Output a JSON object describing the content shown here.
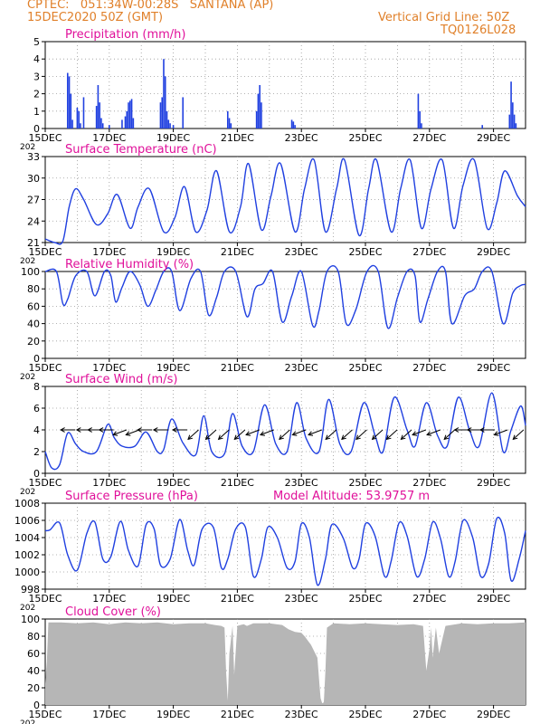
{
  "header": {
    "line1_left": "CPTEC:   051:34W-00:28S   SANTANA (AP)",
    "line2_left": "15DEC2020 50Z (GMT)",
    "line1_right": "Vertical Grid Line: 50Z",
    "line2_right": "TQ0126L028"
  },
  "colors": {
    "header": "#e0802a",
    "title": "#e0109a",
    "series": "#2040e0",
    "bars": "#2040e0",
    "cloud": "#b4b4b4",
    "grid": "#9a9a9a"
  },
  "x_axis": {
    "ticks": [
      "15DEC",
      "17DEC",
      "19DEC",
      "21DEC",
      "23DEC",
      "25DEC",
      "27DEC",
      "29DEC"
    ],
    "tick_days": [
      0,
      2,
      4,
      6,
      8,
      10,
      12,
      14
    ],
    "year_fragment": "202"
  },
  "chart_data": [
    {
      "id": "precip",
      "type": "bar",
      "title": "Precipitation  (mm/h)",
      "ylim": [
        0,
        5
      ],
      "yticks": [
        "0",
        "1",
        "2",
        "3",
        "4",
        "5"
      ],
      "x": [
        0.7,
        0.75,
        0.8,
        0.85,
        1.0,
        1.05,
        1.1,
        1.2,
        1.6,
        1.65,
        1.7,
        1.75,
        1.8,
        2.0,
        2.4,
        2.5,
        2.55,
        2.6,
        2.65,
        2.7,
        2.75,
        3.6,
        3.65,
        3.7,
        3.75,
        3.8,
        3.85,
        3.9,
        4.0,
        4.3,
        5.7,
        5.75,
        5.8,
        6.6,
        6.65,
        6.7,
        6.75,
        7.7,
        7.75,
        7.8,
        11.65,
        11.7,
        11.75,
        13.65,
        14.5,
        14.55,
        14.6,
        14.65,
        14.7
      ],
      "values": [
        3.2,
        3.0,
        2.0,
        0.5,
        1.2,
        1.0,
        0.3,
        1.8,
        1.3,
        2.5,
        1.5,
        0.6,
        0.3,
        0.2,
        0.5,
        0.7,
        1.0,
        1.5,
        1.6,
        1.7,
        0.6,
        1.5,
        1.8,
        4.0,
        3.0,
        1.0,
        0.5,
        0.3,
        0.2,
        1.8,
        1.0,
        0.6,
        0.3,
        1.0,
        2.0,
        2.5,
        1.5,
        0.5,
        0.4,
        0.2,
        2.0,
        1.0,
        0.3,
        0.2,
        0.8,
        2.7,
        1.5,
        0.8,
        0.3
      ]
    },
    {
      "id": "temp",
      "type": "line",
      "title": "Surface Temperature (nC)",
      "ylim": [
        21,
        33
      ],
      "yticks": [
        "21",
        "24",
        "27",
        "30",
        "33"
      ],
      "x": [
        0,
        0.3,
        0.55,
        0.75,
        0.95,
        1.2,
        1.6,
        1.95,
        2.25,
        2.65,
        2.9,
        3.25,
        3.7,
        4.05,
        4.35,
        4.7,
        5.05,
        5.35,
        5.75,
        6.1,
        6.35,
        6.75,
        7.05,
        7.35,
        7.8,
        8.1,
        8.4,
        8.75,
        9.1,
        9.35,
        9.8,
        10.1,
        10.35,
        10.8,
        11.1,
        11.4,
        11.75,
        12.05,
        12.4,
        12.75,
        13.05,
        13.4,
        13.8,
        14.1,
        14.35,
        14.75,
        15.0
      ],
      "values": [
        21.5,
        21.0,
        21.2,
        26.0,
        28.5,
        27.0,
        23.5,
        25.0,
        27.7,
        23.0,
        26.0,
        28.5,
        22.5,
        24.5,
        28.8,
        22.5,
        25.5,
        31.0,
        22.5,
        26.0,
        32.0,
        22.8,
        27.5,
        32.0,
        22.5,
        28.5,
        32.5,
        22.5,
        28.5,
        32.5,
        22.0,
        28.5,
        32.5,
        22.5,
        28.5,
        32.5,
        23.0,
        28.5,
        32.5,
        23.0,
        29.0,
        32.5,
        23.0,
        26.5,
        31.0,
        27.5,
        26.0
      ]
    },
    {
      "id": "rh",
      "type": "line",
      "title": "Relative Humidity (%)",
      "ylim": [
        0,
        100
      ],
      "yticks": [
        "0",
        "20",
        "40",
        "60",
        "80",
        "100"
      ],
      "x": [
        0,
        0.35,
        0.55,
        0.7,
        0.95,
        1.3,
        1.55,
        1.85,
        2.05,
        2.2,
        2.4,
        2.65,
        2.95,
        3.2,
        3.45,
        3.7,
        3.95,
        4.2,
        4.55,
        4.85,
        5.1,
        5.35,
        5.6,
        5.95,
        6.3,
        6.55,
        6.8,
        7.1,
        7.4,
        7.7,
        8.0,
        8.35,
        8.55,
        8.8,
        9.15,
        9.4,
        9.7,
        10.05,
        10.4,
        10.7,
        11.0,
        11.3,
        11.55,
        11.7,
        11.95,
        12.25,
        12.5,
        12.7,
        13.1,
        13.4,
        13.65,
        13.95,
        14.3,
        14.6,
        14.85,
        15.0
      ],
      "values": [
        100,
        100,
        63,
        68,
        95,
        100,
        72,
        100,
        95,
        65,
        82,
        100,
        85,
        60,
        78,
        100,
        100,
        55,
        92,
        100,
        50,
        70,
        100,
        100,
        48,
        80,
        86,
        100,
        42,
        72,
        100,
        38,
        55,
        100,
        100,
        40,
        56,
        100,
        100,
        35,
        70,
        100,
        95,
        42,
        68,
        100,
        100,
        40,
        72,
        80,
        100,
        100,
        40,
        75,
        84,
        85
      ]
    },
    {
      "id": "wind",
      "type": "line",
      "title": "Surface Wind (m/s)",
      "ylim": [
        0,
        8
      ],
      "yticks": [
        "0",
        "2",
        "4",
        "6",
        "8"
      ],
      "x": [
        0,
        0.2,
        0.45,
        0.7,
        0.95,
        1.2,
        1.6,
        1.95,
        2.15,
        2.4,
        2.8,
        3.15,
        3.5,
        3.7,
        3.95,
        4.3,
        4.7,
        4.95,
        5.2,
        5.6,
        5.85,
        6.15,
        6.5,
        6.85,
        7.2,
        7.55,
        7.85,
        8.15,
        8.55,
        8.85,
        9.2,
        9.55,
        9.95,
        10.3,
        10.55,
        10.9,
        11.3,
        11.55,
        11.9,
        12.25,
        12.55,
        12.9,
        13.25,
        13.55,
        13.95,
        14.3,
        14.55,
        14.85,
        15.0
      ],
      "values": [
        2.0,
        0.5,
        0.8,
        3.7,
        2.7,
        2.0,
        2.0,
        4.5,
        3.3,
        2.5,
        2.5,
        3.8,
        2.0,
        2.2,
        5.0,
        2.8,
        1.7,
        5.3,
        2.0,
        1.8,
        5.5,
        2.5,
        2.0,
        6.3,
        2.7,
        2.0,
        6.5,
        3.2,
        2.0,
        6.8,
        2.7,
        2.0,
        6.5,
        3.5,
        2.0,
        7.0,
        4.0,
        2.5,
        6.5,
        3.5,
        2.5,
        7.0,
        4.0,
        2.5,
        7.4,
        2.0,
        4.0,
        6.2,
        4.4
      ]
    },
    {
      "id": "pressure",
      "type": "line",
      "title": "Surface Pressure (hPa)",
      "ylim": [
        998,
        1008
      ],
      "yticks": [
        "998",
        "1000",
        "1002",
        "1004",
        "1006",
        "1008"
      ],
      "x": [
        0,
        0.15,
        0.45,
        0.7,
        1.0,
        1.3,
        1.55,
        1.8,
        2.05,
        2.35,
        2.6,
        2.9,
        3.15,
        3.4,
        3.6,
        3.9,
        4.2,
        4.45,
        4.65,
        4.9,
        5.25,
        5.5,
        5.7,
        5.95,
        6.25,
        6.5,
        6.75,
        6.95,
        7.25,
        7.55,
        7.8,
        8.0,
        8.25,
        8.5,
        8.75,
        8.95,
        9.3,
        9.6,
        9.8,
        10.0,
        10.3,
        10.6,
        10.8,
        11.05,
        11.3,
        11.6,
        11.85,
        12.1,
        12.35,
        12.6,
        12.8,
        13.05,
        13.35,
        13.6,
        13.85,
        14.1,
        14.35,
        14.55,
        14.8,
        15.0
      ],
      "values": [
        1004.8,
        1004.9,
        1005.7,
        1002.0,
        1000.2,
        1004.5,
        1005.8,
        1001.5,
        1001.8,
        1005.9,
        1002.5,
        1000.7,
        1005.5,
        1005.0,
        1000.8,
        1001.5,
        1006.1,
        1002.5,
        1000.8,
        1005.0,
        1005.2,
        1000.5,
        1001.5,
        1005.0,
        1005.2,
        999.5,
        1001.5,
        1005.2,
        1004.0,
        1000.5,
        1001.2,
        1005.6,
        1004.0,
        998.5,
        1001.5,
        1005.5,
        1004.0,
        1000.5,
        1001.5,
        1005.6,
        1004.2,
        999.5,
        1001.2,
        1005.7,
        1004.2,
        999.5,
        1001.5,
        1005.8,
        1003.8,
        999.5,
        1001.2,
        1006.0,
        1004.0,
        999.5,
        1001.0,
        1006.2,
        1004.5,
        999.0,
        1001.5,
        1004.8
      ]
    },
    {
      "id": "cloud",
      "type": "area",
      "title": "Cloud Cover (%)",
      "ylim": [
        0,
        100
      ],
      "yticks": [
        "0",
        "20",
        "40",
        "60",
        "80",
        "100"
      ],
      "x": [
        0,
        0.05,
        0.1,
        0.5,
        1.0,
        1.5,
        2.0,
        2.5,
        3.0,
        3.5,
        4.0,
        4.5,
        5.0,
        5.3,
        5.5,
        5.6,
        5.65,
        5.7,
        5.75,
        5.85,
        5.9,
        6.0,
        6.1,
        6.2,
        6.3,
        6.5,
        7.0,
        7.4,
        7.6,
        7.8,
        8.0,
        8.1,
        8.3,
        8.5,
        8.55,
        8.6,
        8.65,
        8.7,
        8.75,
        8.8,
        9.0,
        9.5,
        10.0,
        10.5,
        11.0,
        11.5,
        11.8,
        11.9,
        12.0,
        12.05,
        12.1,
        12.2,
        12.3,
        12.5,
        13.0,
        13.5,
        14.0,
        14.5,
        15.0
      ],
      "values": [
        25,
        50,
        96,
        96,
        95,
        96,
        94,
        96,
        95,
        96,
        94,
        95,
        95,
        93,
        92,
        90,
        38,
        5,
        60,
        92,
        35,
        92,
        93,
        94,
        92,
        95,
        95,
        93,
        88,
        85,
        84,
        80,
        70,
        55,
        30,
        8,
        2,
        3,
        40,
        90,
        95,
        94,
        95,
        94,
        93,
        94,
        92,
        40,
        65,
        90,
        55,
        90,
        60,
        92,
        95,
        94,
        95,
        95,
        96
      ]
    }
  ],
  "model_altitude_label": "Model Altitude: 53.9757 m",
  "wind_arrows": [
    {
      "day": 0.6,
      "dir": "W"
    },
    {
      "day": 1.1,
      "dir": "W"
    },
    {
      "day": 1.45,
      "dir": "W"
    },
    {
      "day": 1.8,
      "dir": "W"
    },
    {
      "day": 2.2,
      "dir": "WSW"
    },
    {
      "day": 2.6,
      "dir": "WSW"
    },
    {
      "day": 3.0,
      "dir": "W"
    },
    {
      "day": 3.5,
      "dir": "W"
    },
    {
      "day": 4.1,
      "dir": "W"
    },
    {
      "day": 4.45,
      "dir": "SW"
    },
    {
      "day": 5.0,
      "dir": "SW"
    },
    {
      "day": 5.4,
      "dir": "SW"
    },
    {
      "day": 5.9,
      "dir": "SW"
    },
    {
      "day": 6.35,
      "dir": "WSW"
    },
    {
      "day": 6.8,
      "dir": "WSW"
    },
    {
      "day": 7.3,
      "dir": "SW"
    },
    {
      "day": 7.8,
      "dir": "WSW"
    },
    {
      "day": 8.3,
      "dir": "WSW"
    },
    {
      "day": 8.75,
      "dir": "SW"
    },
    {
      "day": 9.25,
      "dir": "SW"
    },
    {
      "day": 9.7,
      "dir": "SW"
    },
    {
      "day": 10.2,
      "dir": "SW"
    },
    {
      "day": 10.65,
      "dir": "SW"
    },
    {
      "day": 11.1,
      "dir": "SW"
    },
    {
      "day": 11.55,
      "dir": "WSW"
    },
    {
      "day": 12.0,
      "dir": "WSW"
    },
    {
      "day": 12.45,
      "dir": "SW"
    },
    {
      "day": 12.9,
      "dir": "W"
    },
    {
      "day": 13.3,
      "dir": "W"
    },
    {
      "day": 13.7,
      "dir": "W"
    },
    {
      "day": 14.1,
      "dir": "WSW"
    },
    {
      "day": 14.6,
      "dir": "SW"
    }
  ]
}
